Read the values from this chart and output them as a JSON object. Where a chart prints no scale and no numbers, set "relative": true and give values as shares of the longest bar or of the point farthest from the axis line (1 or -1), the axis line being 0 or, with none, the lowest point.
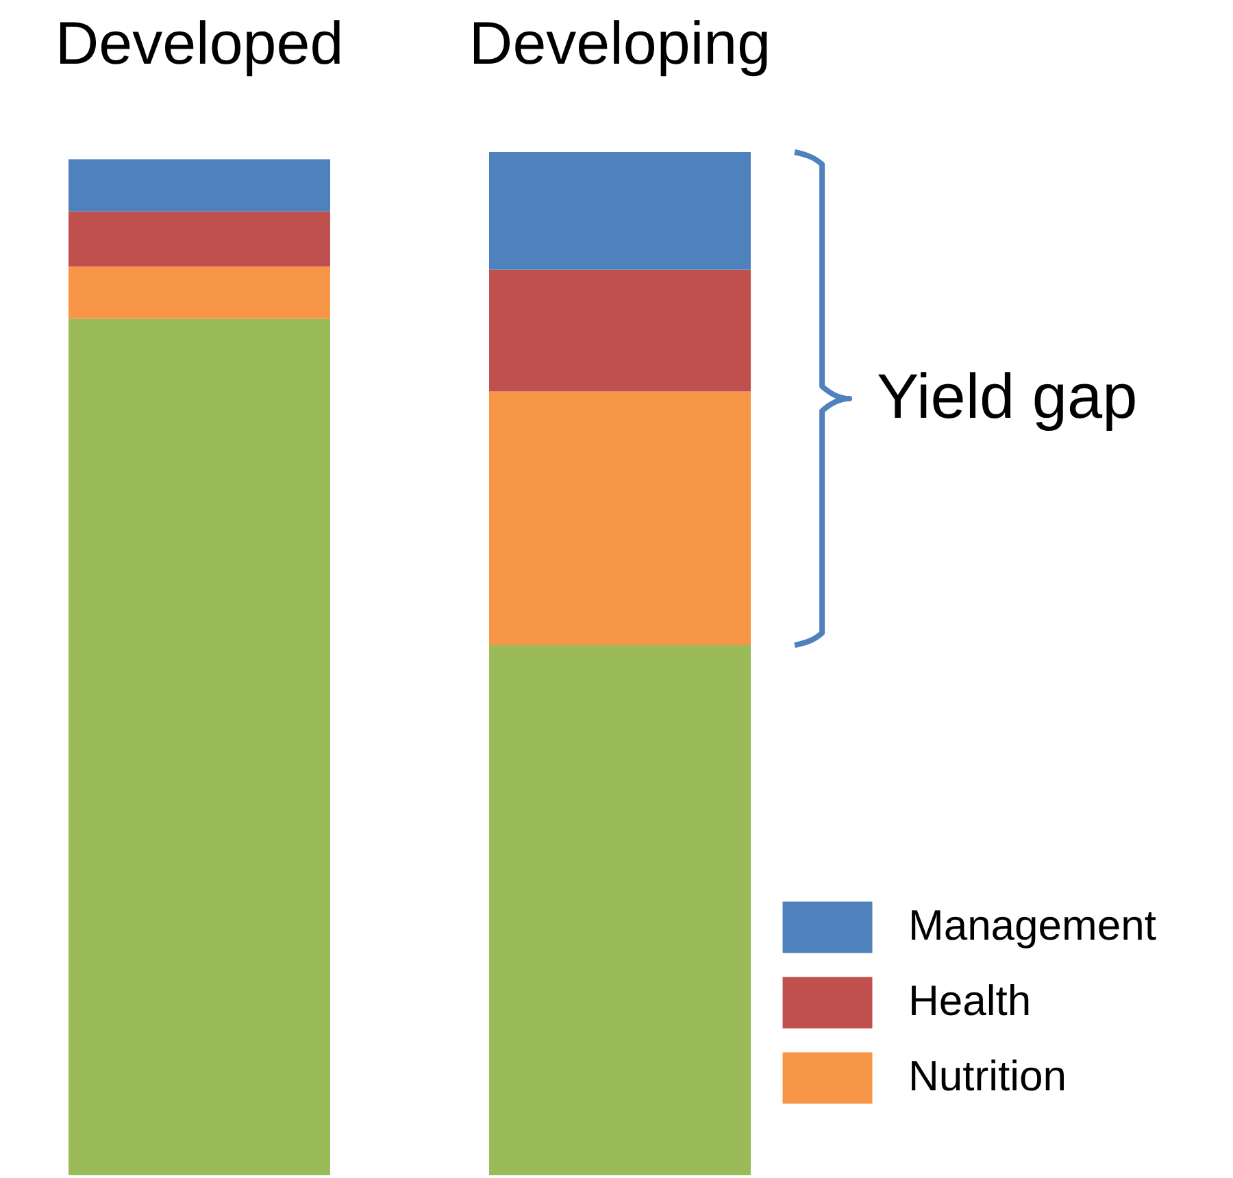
{
  "chart_data": {
    "type": "bar",
    "stacked": true,
    "relative": true,
    "categories": [
      "Developed",
      "Developing"
    ],
    "series": [
      {
        "color": "#9bbb59",
        "values": [
          0.837,
          0.518
        ]
      },
      {
        "name": "Nutrition",
        "color": "#f79646",
        "values": [
          0.051,
          0.248
        ]
      },
      {
        "name": "Health",
        "color": "#c0504d",
        "values": [
          0.054,
          0.119
        ]
      },
      {
        "name": "Management",
        "color": "#4f81bd",
        "values": [
          0.051,
          0.115
        ]
      }
    ],
    "annotations": [
      "Yield gap"
    ],
    "legend": "bottom right",
    "grid": false
  }
}
